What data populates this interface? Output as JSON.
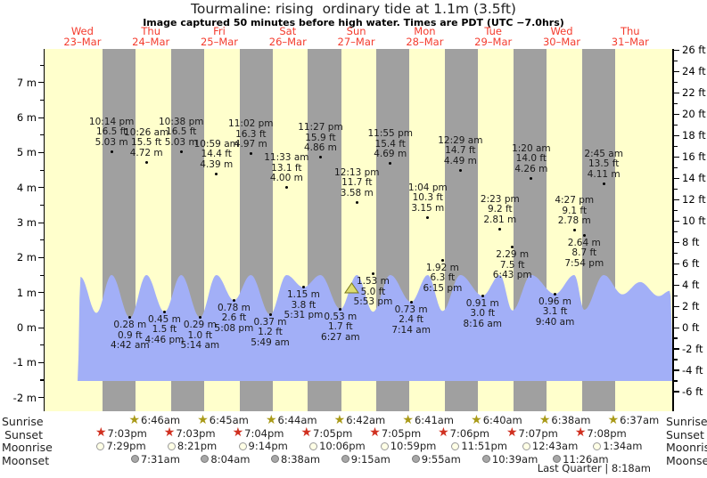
{
  "title": "Tourmaline: rising  ordinary tide at 1.1m (3.5ft)",
  "subtitle": "Image captured 50 minutes before high water. Times are PDT (UTC −7.0hrs)",
  "chart_data": {
    "type": "area",
    "days": [
      {
        "weekday": "Wed",
        "date": "23–Mar"
      },
      {
        "weekday": "Thu",
        "date": "24–Mar"
      },
      {
        "weekday": "Fri",
        "date": "25–Mar"
      },
      {
        "weekday": "Sat",
        "date": "26–Mar"
      },
      {
        "weekday": "Sun",
        "date": "27–Mar"
      },
      {
        "weekday": "Mon",
        "date": "28–Mar"
      },
      {
        "weekday": "Tue",
        "date": "29–Mar"
      },
      {
        "weekday": "Wed",
        "date": "30–Mar"
      },
      {
        "weekday": "Thu",
        "date": "31–Mar"
      }
    ],
    "y_axis_left": {
      "unit": "m",
      "ticks": [
        {
          "v": 7,
          "label": "7 m"
        },
        {
          "v": 6,
          "label": "6 m"
        },
        {
          "v": 5,
          "label": "5 m"
        },
        {
          "v": 4,
          "label": "4 m"
        },
        {
          "v": 3,
          "label": "3 m"
        },
        {
          "v": 2,
          "label": "2 m"
        },
        {
          "v": 1,
          "label": "1 m"
        },
        {
          "v": 0,
          "label": "0 m"
        },
        {
          "v": -1,
          "label": "-1 m"
        },
        {
          "v": -2,
          "label": "-2 m"
        }
      ]
    },
    "y_axis_right": {
      "unit": "ft",
      "ticks": [
        {
          "v": 26,
          "label": "26 ft"
        },
        {
          "v": 24,
          "label": "24 ft"
        },
        {
          "v": 22,
          "label": "22 ft"
        },
        {
          "v": 20,
          "label": "20 ft"
        },
        {
          "v": 18,
          "label": "18 ft"
        },
        {
          "v": 16,
          "label": "16 ft"
        },
        {
          "v": 14,
          "label": "14 ft"
        },
        {
          "v": 12,
          "label": "12 ft"
        },
        {
          "v": 10,
          "label": "10 ft"
        },
        {
          "v": 8,
          "label": "8 ft"
        },
        {
          "v": 6,
          "label": "6 ft"
        },
        {
          "v": 4,
          "label": "4 ft"
        },
        {
          "v": 2,
          "label": "2 ft"
        },
        {
          "v": 0,
          "label": "0 ft"
        },
        {
          "v": -2,
          "label": "-2 ft"
        },
        {
          "v": -4,
          "label": "-4 ft"
        },
        {
          "v": -6,
          "label": "-6 ft"
        }
      ]
    },
    "tide_events": [
      {
        "day": 0,
        "time": "10:14 pm",
        "type": "high",
        "height_m": 5.03,
        "ft_label": "16.5 ft",
        "m_label": "5.03 m"
      },
      {
        "day": 1,
        "time": "4:42 am",
        "type": "low",
        "height_m": 0.28,
        "ft_label": "0.9 ft",
        "m_label": "0.28 m"
      },
      {
        "day": 1,
        "time": "10:26 am",
        "type": "high",
        "height_m": 4.72,
        "ft_label": "15.5 ft",
        "m_label": "4.72 m"
      },
      {
        "day": 1,
        "time": "4:46 pm",
        "type": "low",
        "height_m": 0.45,
        "ft_label": "1.5 ft",
        "m_label": "0.45 m"
      },
      {
        "day": 1,
        "time": "10:38 pm",
        "type": "high",
        "height_m": 5.03,
        "ft_label": "16.5 ft",
        "m_label": "5.03 m"
      },
      {
        "day": 2,
        "time": "5:14 am",
        "type": "low",
        "height_m": 0.29,
        "ft_label": "1.0 ft",
        "m_label": "0.29 m"
      },
      {
        "day": 2,
        "time": "10:59 am",
        "type": "high",
        "height_m": 4.39,
        "ft_label": "14.4 ft",
        "m_label": "4.39 m"
      },
      {
        "day": 2,
        "time": "5:08 pm",
        "type": "low",
        "height_m": 0.78,
        "ft_label": "2.6 ft",
        "m_label": "0.78 m"
      },
      {
        "day": 2,
        "time": "11:02 pm",
        "type": "high",
        "height_m": 4.97,
        "ft_label": "16.3 ft",
        "m_label": "4.97 m"
      },
      {
        "day": 3,
        "time": "5:49 am",
        "type": "low",
        "height_m": 0.37,
        "ft_label": "1.2 ft",
        "m_label": "0.37 m"
      },
      {
        "day": 3,
        "time": "11:33 am",
        "type": "high",
        "height_m": 4.0,
        "ft_label": "13.1 ft",
        "m_label": "4.00 m"
      },
      {
        "day": 3,
        "time": "5:31 pm",
        "type": "low",
        "height_m": 1.15,
        "ft_label": "3.8 ft",
        "m_label": "1.15 m"
      },
      {
        "day": 3,
        "time": "11:27 pm",
        "type": "high",
        "height_m": 4.86,
        "ft_label": "15.9 ft",
        "m_label": "4.86 m"
      },
      {
        "day": 4,
        "time": "6:27 am",
        "type": "low",
        "height_m": 0.53,
        "ft_label": "1.7 ft",
        "m_label": "0.53 m"
      },
      {
        "day": 4,
        "time": "12:13 pm",
        "type": "high",
        "height_m": 3.58,
        "ft_label": "11.7 ft",
        "m_label": "3.58 m"
      },
      {
        "day": 4,
        "time": "5:53 pm",
        "type": "low",
        "height_m": 1.53,
        "ft_label": "5.0 ft",
        "m_label": "1.53 m"
      },
      {
        "day": 4,
        "time": "11:55 pm",
        "type": "high",
        "height_m": 4.69,
        "ft_label": "15.4 ft",
        "m_label": "4.69 m"
      },
      {
        "day": 5,
        "time": "7:14 am",
        "type": "low",
        "height_m": 0.73,
        "ft_label": "2.4 ft",
        "m_label": "0.73 m"
      },
      {
        "day": 5,
        "time": "1:04 pm",
        "type": "high",
        "height_m": 3.15,
        "ft_label": "10.3 ft",
        "m_label": "3.15 m"
      },
      {
        "day": 5,
        "time": "6:15 pm",
        "type": "low",
        "height_m": 1.92,
        "ft_label": "6.3 ft",
        "m_label": "1.92 m"
      },
      {
        "day": 6,
        "time": "12:29 am",
        "type": "high",
        "height_m": 4.49,
        "ft_label": "14.7 ft",
        "m_label": "4.49 m"
      },
      {
        "day": 6,
        "time": "8:16 am",
        "type": "low",
        "height_m": 0.91,
        "ft_label": "3.0 ft",
        "m_label": "0.91 m"
      },
      {
        "day": 6,
        "time": "2:23 pm",
        "type": "high",
        "height_m": 2.81,
        "ft_label": "9.2 ft",
        "m_label": "2.81 m"
      },
      {
        "day": 6,
        "time": "6:43 pm",
        "type": "low",
        "height_m": 2.29,
        "ft_label": "7.5 ft",
        "m_label": "2.29 m"
      },
      {
        "day": 7,
        "time": "1:20 am",
        "type": "high",
        "height_m": 4.26,
        "ft_label": "14.0 ft",
        "m_label": "4.26 m"
      },
      {
        "day": 7,
        "time": "9:40 am",
        "type": "low",
        "height_m": 0.96,
        "ft_label": "3.1 ft",
        "m_label": "0.96 m"
      },
      {
        "day": 7,
        "time": "4:27 pm",
        "type": "high",
        "height_m": 2.78,
        "ft_label": "9.1 ft",
        "m_label": "2.78 m"
      },
      {
        "day": 7,
        "time": "7:54 pm",
        "type": "low",
        "height_m": 2.64,
        "ft_label": "8.7 ft",
        "m_label": "2.64 m"
      },
      {
        "day": 8,
        "time": "2:45 am",
        "type": "high",
        "height_m": 4.11,
        "ft_label": "13.5 ft",
        "m_label": "4.11 m"
      }
    ],
    "current_marker": {
      "icon": "current-tide-marker-triangle",
      "height_m": 1.1
    },
    "colors": {
      "day_band": "#ffffcc",
      "night_band": "#a0a0a0",
      "water": "#a2aff7",
      "date_label": "#f43b2d",
      "sunrise_star": "#a99a18",
      "sunset_star": "#d03020",
      "moonrise_fill": "#ffffe6",
      "moonset_fill": "#a8a8a8",
      "marker_fill": "#dede70",
      "marker_stroke": "#77771a"
    }
  },
  "astro": {
    "row_labels": [
      "Sunrise",
      "Sunset",
      "Moonrise",
      "Moonset"
    ],
    "sunrise": [
      {
        "day": 1,
        "time": "6:46am"
      },
      {
        "day": 2,
        "time": "6:45am"
      },
      {
        "day": 3,
        "time": "6:44am"
      },
      {
        "day": 4,
        "time": "6:42am"
      },
      {
        "day": 5,
        "time": "6:41am"
      },
      {
        "day": 6,
        "time": "6:40am"
      },
      {
        "day": 7,
        "time": "6:38am"
      },
      {
        "day": 8,
        "time": "6:37am"
      }
    ],
    "sunset": [
      {
        "day": 0,
        "time": "7:03pm"
      },
      {
        "day": 1,
        "time": "7:03pm"
      },
      {
        "day": 2,
        "time": "7:04pm"
      },
      {
        "day": 3,
        "time": "7:05pm"
      },
      {
        "day": 4,
        "time": "7:05pm"
      },
      {
        "day": 5,
        "time": "7:06pm"
      },
      {
        "day": 6,
        "time": "7:07pm"
      },
      {
        "day": 7,
        "time": "7:08pm"
      }
    ],
    "moonrise": [
      {
        "day": 0,
        "time": "7:29pm"
      },
      {
        "day": 1,
        "time": "8:21pm"
      },
      {
        "day": 2,
        "time": "9:14pm"
      },
      {
        "day": 3,
        "time": "10:06pm"
      },
      {
        "day": 4,
        "time": "10:59pm"
      },
      {
        "day": 5,
        "time": "11:51pm"
      },
      {
        "day": 7,
        "time": "12:43am"
      },
      {
        "day": 8,
        "time": "1:34am"
      }
    ],
    "moonset": [
      {
        "day": 1,
        "time": "7:31am"
      },
      {
        "day": 2,
        "time": "8:04am"
      },
      {
        "day": 3,
        "time": "8:38am"
      },
      {
        "day": 4,
        "time": "9:15am"
      },
      {
        "day": 5,
        "time": "9:55am"
      },
      {
        "day": 6,
        "time": "10:39am"
      },
      {
        "day": 7,
        "time": "11:26am"
      }
    ],
    "moon_phase": "Last Quarter | 8:18am"
  }
}
